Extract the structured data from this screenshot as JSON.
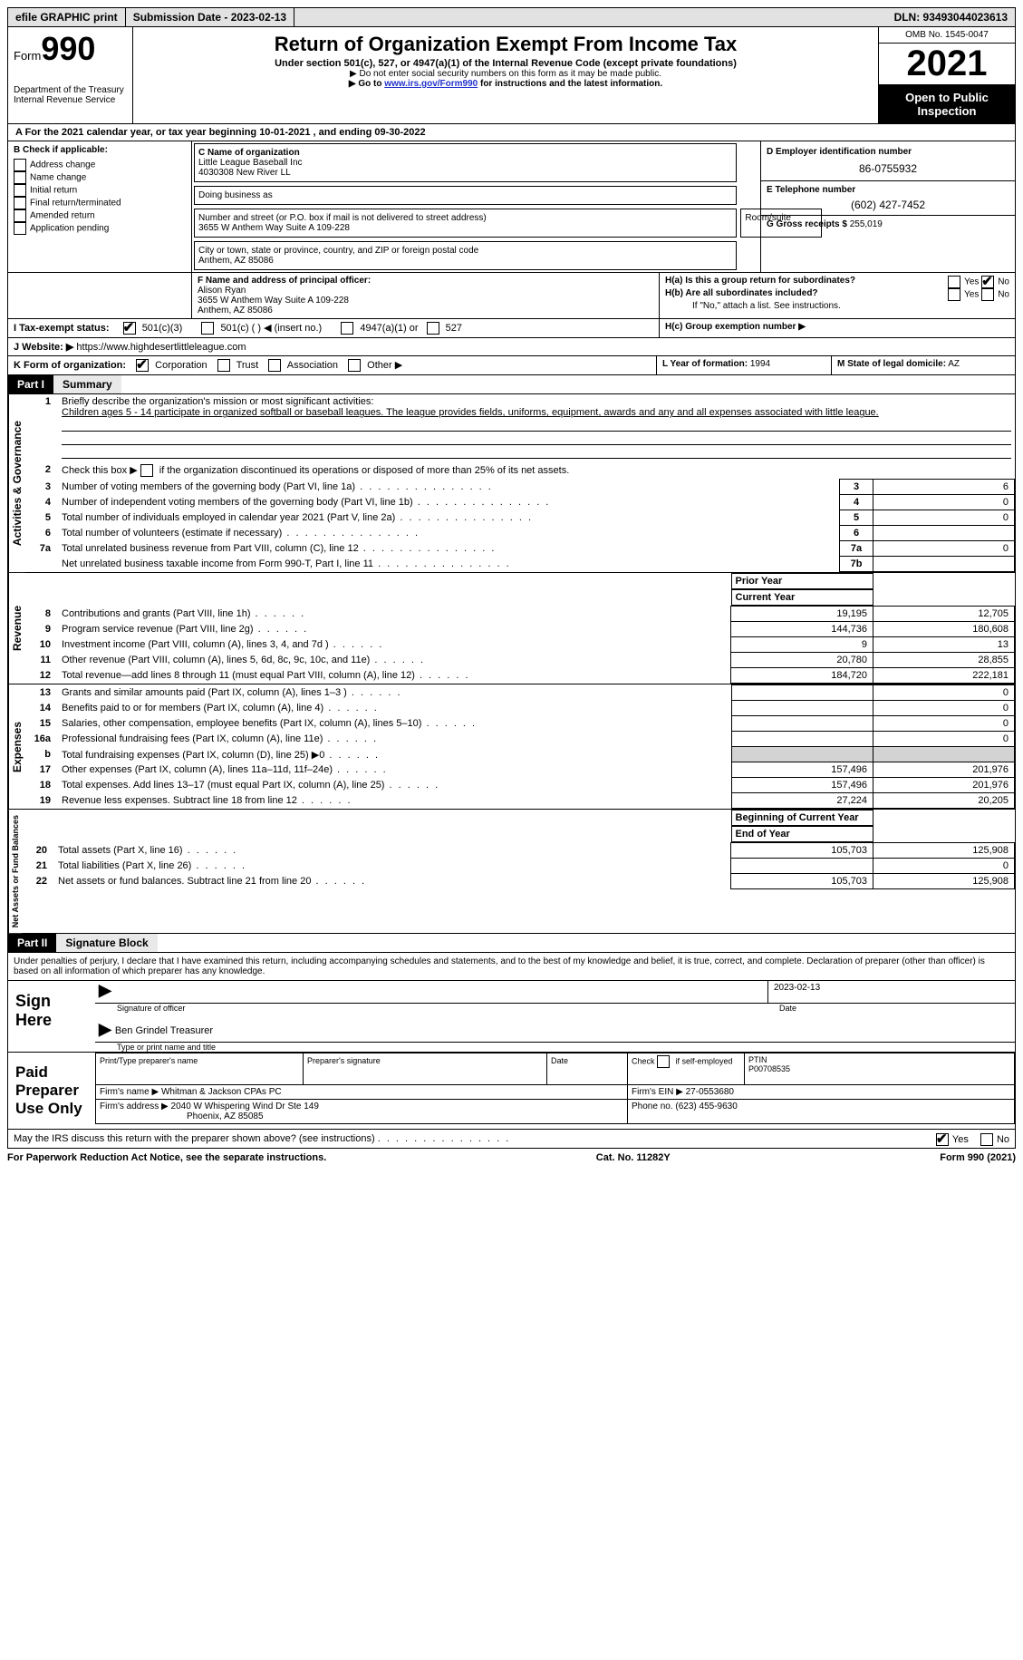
{
  "topbar": {
    "efile": "efile GRAPHIC print",
    "submission_label": "Submission Date - 2023-02-13",
    "dln_label": "DLN: 93493044023613"
  },
  "header": {
    "form_word": "Form",
    "form_num": "990",
    "title": "Return of Organization Exempt From Income Tax",
    "subtitle": "Under section 501(c), 527, or 4947(a)(1) of the Internal Revenue Code (except private foundations)",
    "note1": "▶ Do not enter social security numbers on this form as it may be made public.",
    "note2_pre": "▶ Go to ",
    "note2_link": "www.irs.gov/Form990",
    "note2_post": " for instructions and the latest information.",
    "dept": "Department of the Treasury",
    "irs": "Internal Revenue Service",
    "omb": "OMB No. 1545-0047",
    "year": "2021",
    "otp": "Open to Public Inspection"
  },
  "line_a": "A For the 2021 calendar year, or tax year beginning 10-01-2021    , and ending 09-30-2022",
  "boxB": {
    "title": "B Check if applicable:",
    "opts": [
      "Address change",
      "Name change",
      "Initial return",
      "Final return/terminated",
      "Amended return",
      "Application pending"
    ]
  },
  "boxC": {
    "label": "C Name of organization",
    "name1": "Little League Baseball Inc",
    "name2": "4030308 New River LL",
    "dba_label": "Doing business as",
    "street_label": "Number and street (or P.O. box if mail is not delivered to street address)",
    "room_label": "Room/suite",
    "street": "3655 W Anthem Way Suite A 109-228",
    "city_label": "City or town, state or province, country, and ZIP or foreign postal code",
    "city": "Anthem, AZ  85086"
  },
  "boxD": {
    "label": "D Employer identification number",
    "value": "86-0755932"
  },
  "boxE": {
    "label": "E Telephone number",
    "value": "(602) 427-7452"
  },
  "boxG": {
    "label": "G Gross receipts $",
    "value": "255,019"
  },
  "boxF": {
    "label": "F  Name and address of principal officer:",
    "name": "Alison Ryan",
    "addr1": "3655 W Anthem Way Suite A 109-228",
    "addr2": "Anthem, AZ  85086"
  },
  "boxH": {
    "a": "H(a)  Is this a group return for subordinates?",
    "b": "H(b)  Are all subordinates included?",
    "b_note": "If \"No,\" attach a list. See instructions.",
    "c": "H(c)  Group exemption number ▶"
  },
  "boxI": {
    "label": "I  Tax-exempt status:",
    "o1": "501(c)(3)",
    "o2": "501(c) (  ) ◀ (insert no.)",
    "o3": "4947(a)(1) or",
    "o4": "527"
  },
  "boxJ": {
    "label": "J   Website: ▶",
    "value": "https://www.highdesertlittleleague.com"
  },
  "boxK": {
    "label": "K Form of organization:",
    "opts": [
      "Corporation",
      "Trust",
      "Association",
      "Other ▶"
    ]
  },
  "boxL": {
    "label": "L Year of formation:",
    "value": "1994"
  },
  "boxM": {
    "label": "M State of legal domicile:",
    "value": "AZ"
  },
  "part1": {
    "num": "Part I",
    "title": "Summary"
  },
  "summary": {
    "q1_label": "Briefly describe the organization's mission or most significant activities:",
    "q1_text": "Children ages 5 - 14 participate in organized softball or baseball leagues. The league provides fields, uniforms, equipment, awards and any and all expenses associated with little league.",
    "q2": "Check this box ▶        if the organization discontinued its operations or disposed of more than 25% of its net assets.",
    "lines_ag": [
      {
        "n": "3",
        "t": "Number of voting members of the governing body (Part VI, line 1a)",
        "b": "3",
        "v": "6"
      },
      {
        "n": "4",
        "t": "Number of independent voting members of the governing body (Part VI, line 1b)",
        "b": "4",
        "v": "0"
      },
      {
        "n": "5",
        "t": "Total number of individuals employed in calendar year 2021 (Part V, line 2a)",
        "b": "5",
        "v": "0"
      },
      {
        "n": "6",
        "t": "Total number of volunteers (estimate if necessary)",
        "b": "6",
        "v": ""
      },
      {
        "n": "7a",
        "t": "Total unrelated business revenue from Part VIII, column (C), line 12",
        "b": "7a",
        "v": "0"
      },
      {
        "n": "",
        "t": "Net unrelated business taxable income from Form 990-T, Part I, line 11",
        "b": "7b",
        "v": ""
      }
    ],
    "colhdr_prior": "Prior Year",
    "colhdr_curr": "Current Year",
    "revenue": [
      {
        "n": "8",
        "t": "Contributions and grants (Part VIII, line 1h)",
        "p": "19,195",
        "c": "12,705"
      },
      {
        "n": "9",
        "t": "Program service revenue (Part VIII, line 2g)",
        "p": "144,736",
        "c": "180,608"
      },
      {
        "n": "10",
        "t": "Investment income (Part VIII, column (A), lines 3, 4, and 7d )",
        "p": "9",
        "c": "13"
      },
      {
        "n": "11",
        "t": "Other revenue (Part VIII, column (A), lines 5, 6d, 8c, 9c, 10c, and 11e)",
        "p": "20,780",
        "c": "28,855"
      },
      {
        "n": "12",
        "t": "Total revenue—add lines 8 through 11 (must equal Part VIII, column (A), line 12)",
        "p": "184,720",
        "c": "222,181"
      }
    ],
    "expenses": [
      {
        "n": "13",
        "t": "Grants and similar amounts paid (Part IX, column (A), lines 1–3 )",
        "p": "",
        "c": "0"
      },
      {
        "n": "14",
        "t": "Benefits paid to or for members (Part IX, column (A), line 4)",
        "p": "",
        "c": "0"
      },
      {
        "n": "15",
        "t": "Salaries, other compensation, employee benefits (Part IX, column (A), lines 5–10)",
        "p": "",
        "c": "0"
      },
      {
        "n": "16a",
        "t": "Professional fundraising fees (Part IX, column (A), line 11e)",
        "p": "",
        "c": "0"
      },
      {
        "n": "b",
        "t": "Total fundraising expenses (Part IX, column (D), line 25) ▶0",
        "p": "shade",
        "c": "shade"
      },
      {
        "n": "17",
        "t": "Other expenses (Part IX, column (A), lines 11a–11d, 11f–24e)",
        "p": "157,496",
        "c": "201,976"
      },
      {
        "n": "18",
        "t": "Total expenses. Add lines 13–17 (must equal Part IX, column (A), line 25)",
        "p": "157,496",
        "c": "201,976"
      },
      {
        "n": "19",
        "t": "Revenue less expenses. Subtract line 18 from line 12",
        "p": "27,224",
        "c": "20,205"
      }
    ],
    "colhdr_beg": "Beginning of Current Year",
    "colhdr_end": "End of Year",
    "netassets": [
      {
        "n": "20",
        "t": "Total assets (Part X, line 16)",
        "p": "105,703",
        "c": "125,908"
      },
      {
        "n": "21",
        "t": "Total liabilities (Part X, line 26)",
        "p": "",
        "c": "0"
      },
      {
        "n": "22",
        "t": "Net assets or fund balances. Subtract line 21 from line 20",
        "p": "105,703",
        "c": "125,908"
      }
    ]
  },
  "vlabels": {
    "ag": "Activities & Governance",
    "rev": "Revenue",
    "exp": "Expenses",
    "na": "Net Assets or Fund Balances"
  },
  "part2": {
    "num": "Part II",
    "title": "Signature Block"
  },
  "sig": {
    "perjury": "Under penalties of perjury, I declare that I have examined this return, including accompanying schedules and statements, and to the best of my knowledge and belief, it is true, correct, and complete. Declaration of preparer (other than officer) is based on all information of which preparer has any knowledge.",
    "sign_here": "Sign Here",
    "sig_officer": "Signature of officer",
    "date": "Date",
    "sig_date": "2023-02-13",
    "typed_name": "Ben Grindel  Treasurer",
    "typed_label": "Type or print name and title",
    "paid": "Paid Preparer Use Only",
    "prep_name_l": "Print/Type preparer's name",
    "prep_sig_l": "Preparer's signature",
    "date_l": "Date",
    "check_self": "Check        if self-employed",
    "ptin_l": "PTIN",
    "ptin": "P00708535",
    "firm_name_l": "Firm's name    ▶",
    "firm_name": "Whitman & Jackson CPAs PC",
    "firm_ein_l": "Firm's EIN ▶",
    "firm_ein": "27-0553680",
    "firm_addr_l": "Firm's address ▶",
    "firm_addr1": "2040 W Whispering Wind Dr Ste 149",
    "firm_addr2": "Phoenix, AZ  85085",
    "phone_l": "Phone no.",
    "phone": "(623) 455-9630",
    "discuss": "May the IRS discuss this return with the preparer shown above? (see instructions)"
  },
  "footer": {
    "left": "For Paperwork Reduction Act Notice, see the separate instructions.",
    "mid": "Cat. No. 11282Y",
    "right": "Form 990 (2021)"
  },
  "yes": "Yes",
  "no": "No"
}
